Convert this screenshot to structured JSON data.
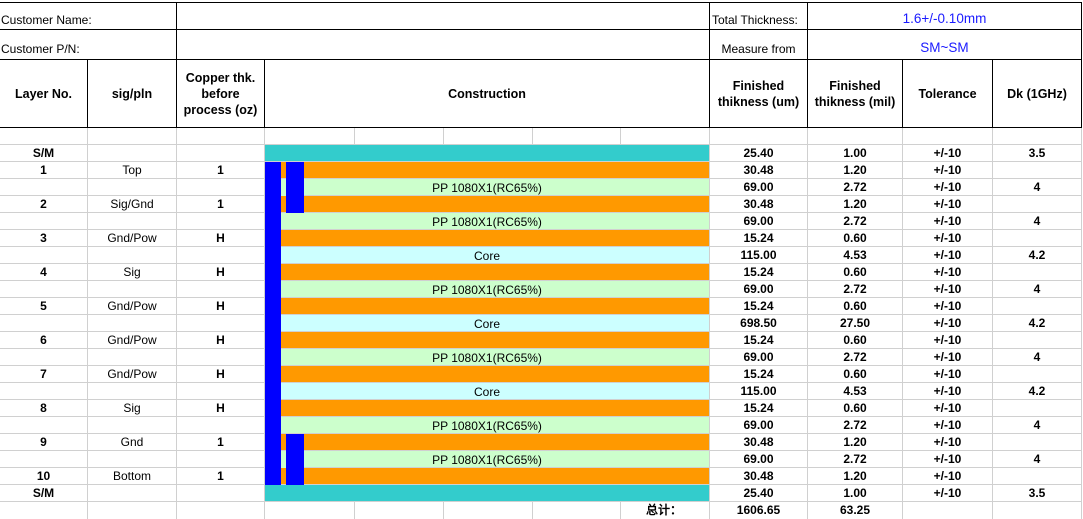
{
  "info": {
    "customer_name_label": "Customer Name:",
    "customer_pn_label": "Customer P/N:",
    "total_thickness_label": "Total Thickness:",
    "total_thickness_value": "1.6+/-0.10mm",
    "measure_from_label": "Measure from",
    "measure_from_value": "SM~SM"
  },
  "headers": {
    "layer_no": "Layer No.",
    "sig_pln": "sig/pln",
    "copper_thk": "Copper thk. before process (oz)",
    "construction": "Construction",
    "finished_um": "Finished thikness (um)",
    "finished_mil": "Finished thikness (mil)",
    "tolerance": "Tolerance",
    "dk": "Dk (1GHz)"
  },
  "colors": {
    "solder_mask": "#33cccc",
    "copper": "#ff9900",
    "prepreg": "#ccffcc",
    "core": "#ccffff",
    "via": "#0000ff"
  },
  "rows": [
    {
      "layer": "S/M",
      "sig": "",
      "oz": "",
      "constr": "",
      "um": "25.40",
      "mil": "1.00",
      "tol": "+/-10",
      "dk": "3.5",
      "type": "sm"
    },
    {
      "layer": "1",
      "sig": "Top",
      "oz": "1",
      "constr": "",
      "um": "30.48",
      "mil": "1.20",
      "tol": "+/-10",
      "dk": "",
      "type": "cu"
    },
    {
      "layer": "",
      "sig": "",
      "oz": "",
      "constr": "PP 1080X1(RC65%)",
      "um": "69.00",
      "mil": "2.72",
      "tol": "+/-10",
      "dk": "4",
      "type": "pp"
    },
    {
      "layer": "2",
      "sig": "Sig/Gnd",
      "oz": "1",
      "constr": "",
      "um": "30.48",
      "mil": "1.20",
      "tol": "+/-10",
      "dk": "",
      "type": "cu"
    },
    {
      "layer": "",
      "sig": "",
      "oz": "",
      "constr": "PP 1080X1(RC65%)",
      "um": "69.00",
      "mil": "2.72",
      "tol": "+/-10",
      "dk": "4",
      "type": "pp"
    },
    {
      "layer": "3",
      "sig": "Gnd/Pow",
      "oz": "H",
      "constr": "",
      "um": "15.24",
      "mil": "0.60",
      "tol": "+/-10",
      "dk": "",
      "type": "cu"
    },
    {
      "layer": "",
      "sig": "",
      "oz": "",
      "constr": "Core",
      "um": "115.00",
      "mil": "4.53",
      "tol": "+/-10",
      "dk": "4.2",
      "type": "core"
    },
    {
      "layer": "4",
      "sig": "Sig",
      "oz": "H",
      "constr": "",
      "um": "15.24",
      "mil": "0.60",
      "tol": "+/-10",
      "dk": "",
      "type": "cu"
    },
    {
      "layer": "",
      "sig": "",
      "oz": "",
      "constr": "PP 1080X1(RC65%)",
      "um": "69.00",
      "mil": "2.72",
      "tol": "+/-10",
      "dk": "4",
      "type": "pp"
    },
    {
      "layer": "5",
      "sig": "Gnd/Pow",
      "oz": "H",
      "constr": "",
      "um": "15.24",
      "mil": "0.60",
      "tol": "+/-10",
      "dk": "",
      "type": "cu"
    },
    {
      "layer": "",
      "sig": "",
      "oz": "",
      "constr": "Core",
      "um": "698.50",
      "mil": "27.50",
      "tol": "+/-10",
      "dk": "4.2",
      "type": "core"
    },
    {
      "layer": "6",
      "sig": "Gnd/Pow",
      "oz": "H",
      "constr": "",
      "um": "15.24",
      "mil": "0.60",
      "tol": "+/-10",
      "dk": "",
      "type": "cu"
    },
    {
      "layer": "",
      "sig": "",
      "oz": "",
      "constr": "PP 1080X1(RC65%)",
      "um": "69.00",
      "mil": "2.72",
      "tol": "+/-10",
      "dk": "4",
      "type": "pp"
    },
    {
      "layer": "7",
      "sig": "Gnd/Pow",
      "oz": "H",
      "constr": "",
      "um": "15.24",
      "mil": "0.60",
      "tol": "+/-10",
      "dk": "",
      "type": "cu"
    },
    {
      "layer": "",
      "sig": "",
      "oz": "",
      "constr": "Core",
      "um": "115.00",
      "mil": "4.53",
      "tol": "+/-10",
      "dk": "4.2",
      "type": "core"
    },
    {
      "layer": "8",
      "sig": "Sig",
      "oz": "H",
      "constr": "",
      "um": "15.24",
      "mil": "0.60",
      "tol": "+/-10",
      "dk": "",
      "type": "cu"
    },
    {
      "layer": "",
      "sig": "",
      "oz": "",
      "constr": "PP 1080X1(RC65%)",
      "um": "69.00",
      "mil": "2.72",
      "tol": "+/-10",
      "dk": "4",
      "type": "pp"
    },
    {
      "layer": "9",
      "sig": "Gnd",
      "oz": "1",
      "constr": "",
      "um": "30.48",
      "mil": "1.20",
      "tol": "+/-10",
      "dk": "",
      "type": "cu"
    },
    {
      "layer": "",
      "sig": "",
      "oz": "",
      "constr": "PP 1080X1(RC65%)",
      "um": "69.00",
      "mil": "2.72",
      "tol": "+/-10",
      "dk": "4",
      "type": "pp"
    },
    {
      "layer": "10",
      "sig": "Bottom",
      "oz": "1",
      "constr": "",
      "um": "30.48",
      "mil": "1.20",
      "tol": "+/-10",
      "dk": "",
      "type": "cu"
    },
    {
      "layer": "S/M",
      "sig": "",
      "oz": "",
      "constr": "",
      "um": "25.40",
      "mil": "1.00",
      "tol": "+/-10",
      "dk": "3.5",
      "type": "sm"
    }
  ],
  "total": {
    "label": "总计：",
    "um": "1606.65",
    "mil": "63.25"
  }
}
